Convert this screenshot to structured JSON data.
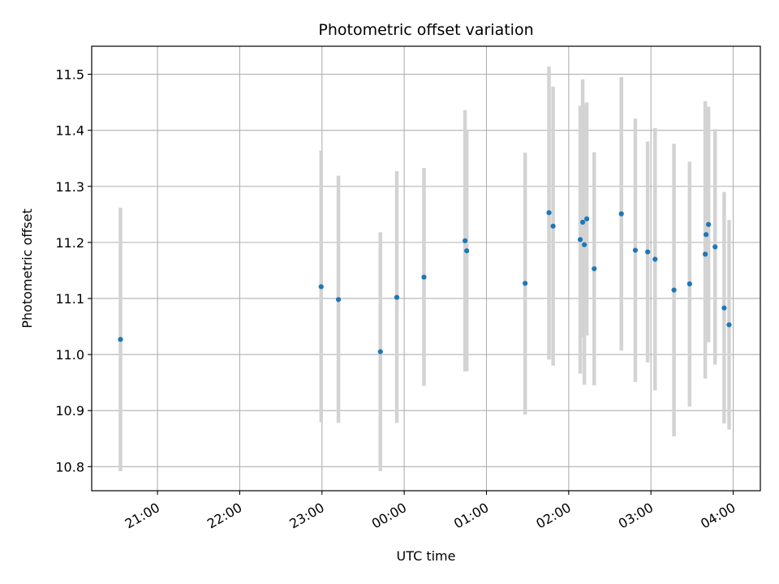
{
  "chart_data": {
    "type": "scatter",
    "title": "Photometric offset variation",
    "xlabel": "UTC time",
    "ylabel": "Photometric offset",
    "x_tick_labels": [
      "21:00",
      "22:00",
      "23:00",
      "00:00",
      "01:00",
      "02:00",
      "03:00",
      "04:00"
    ],
    "x_tick_hours": [
      21,
      22,
      23,
      24,
      25,
      26,
      27,
      28
    ],
    "xlim_hours": [
      20.2,
      28.33
    ],
    "y_ticks": [
      10.8,
      10.9,
      11.0,
      11.1,
      11.2,
      11.3,
      11.4,
      11.5
    ],
    "y_tick_labels": [
      "10.8",
      "10.9",
      "11.0",
      "11.1",
      "11.2",
      "11.3",
      "11.4",
      "11.5"
    ],
    "ylim": [
      10.757,
      11.55
    ],
    "grid": true,
    "colors": {
      "point": "#1f77b4",
      "errorbar": "#d3d3d3",
      "grid": "#b0b0b0"
    },
    "points": [
      {
        "t": "20:33",
        "x": 20.55,
        "y": 11.027,
        "lo": 10.792,
        "hi": 11.262
      },
      {
        "t": "22:59",
        "x": 22.99,
        "y": 11.121,
        "lo": 10.879,
        "hi": 11.364
      },
      {
        "t": "23:12",
        "x": 23.2,
        "y": 11.098,
        "lo": 10.878,
        "hi": 11.319
      },
      {
        "t": "23:42",
        "x": 23.71,
        "y": 11.005,
        "lo": 10.792,
        "hi": 11.218
      },
      {
        "t": "23:54",
        "x": 23.91,
        "y": 11.102,
        "lo": 10.878,
        "hi": 11.327
      },
      {
        "t": "00:14",
        "x": 24.24,
        "y": 11.138,
        "lo": 10.944,
        "hi": 11.333
      },
      {
        "t": "00:44",
        "x": 24.74,
        "y": 11.203,
        "lo": 10.97,
        "hi": 11.436
      },
      {
        "t": "00:45",
        "x": 24.76,
        "y": 11.185,
        "lo": 10.97,
        "hi": 11.4
      },
      {
        "t": "01:28",
        "x": 25.47,
        "y": 11.127,
        "lo": 10.893,
        "hi": 11.36
      },
      {
        "t": "01:45",
        "x": 25.76,
        "y": 11.253,
        "lo": 10.991,
        "hi": 11.514
      },
      {
        "t": "01:48",
        "x": 25.81,
        "y": 11.229,
        "lo": 10.98,
        "hi": 11.478
      },
      {
        "t": "02:08",
        "x": 26.14,
        "y": 11.205,
        "lo": 10.966,
        "hi": 11.444
      },
      {
        "t": "02:10",
        "x": 26.17,
        "y": 11.236,
        "lo": 11.031,
        "hi": 11.491
      },
      {
        "t": "02:11",
        "x": 26.19,
        "y": 11.196,
        "lo": 10.946,
        "hi": 11.446
      },
      {
        "t": "02:13",
        "x": 26.22,
        "y": 11.242,
        "lo": 11.034,
        "hi": 11.45
      },
      {
        "t": "02:19",
        "x": 26.31,
        "y": 11.153,
        "lo": 10.945,
        "hi": 11.361
      },
      {
        "t": "02:38",
        "x": 26.64,
        "y": 11.251,
        "lo": 11.007,
        "hi": 11.495
      },
      {
        "t": "02:49",
        "x": 26.81,
        "y": 11.186,
        "lo": 10.951,
        "hi": 11.421
      },
      {
        "t": "02:58",
        "x": 26.96,
        "y": 11.183,
        "lo": 10.986,
        "hi": 11.38
      },
      {
        "t": "03:03",
        "x": 27.05,
        "y": 11.17,
        "lo": 10.936,
        "hi": 11.404
      },
      {
        "t": "03:17",
        "x": 27.28,
        "y": 11.115,
        "lo": 10.854,
        "hi": 11.376
      },
      {
        "t": "03:28",
        "x": 27.47,
        "y": 11.126,
        "lo": 10.907,
        "hi": 11.344
      },
      {
        "t": "03:40",
        "x": 27.66,
        "y": 11.179,
        "lo": 10.957,
        "hi": 11.452
      },
      {
        "t": "03:40",
        "x": 27.67,
        "y": 11.214,
        "lo": 11.024,
        "hi": 11.404
      },
      {
        "t": "03:42",
        "x": 27.7,
        "y": 11.232,
        "lo": 11.022,
        "hi": 11.442
      },
      {
        "t": "03:47",
        "x": 27.78,
        "y": 11.192,
        "lo": 10.982,
        "hi": 11.402
      },
      {
        "t": "03:53",
        "x": 27.89,
        "y": 11.083,
        "lo": 10.877,
        "hi": 11.29
      },
      {
        "t": "03:57",
        "x": 27.95,
        "y": 11.053,
        "lo": 10.866,
        "hi": 11.24
      }
    ]
  }
}
